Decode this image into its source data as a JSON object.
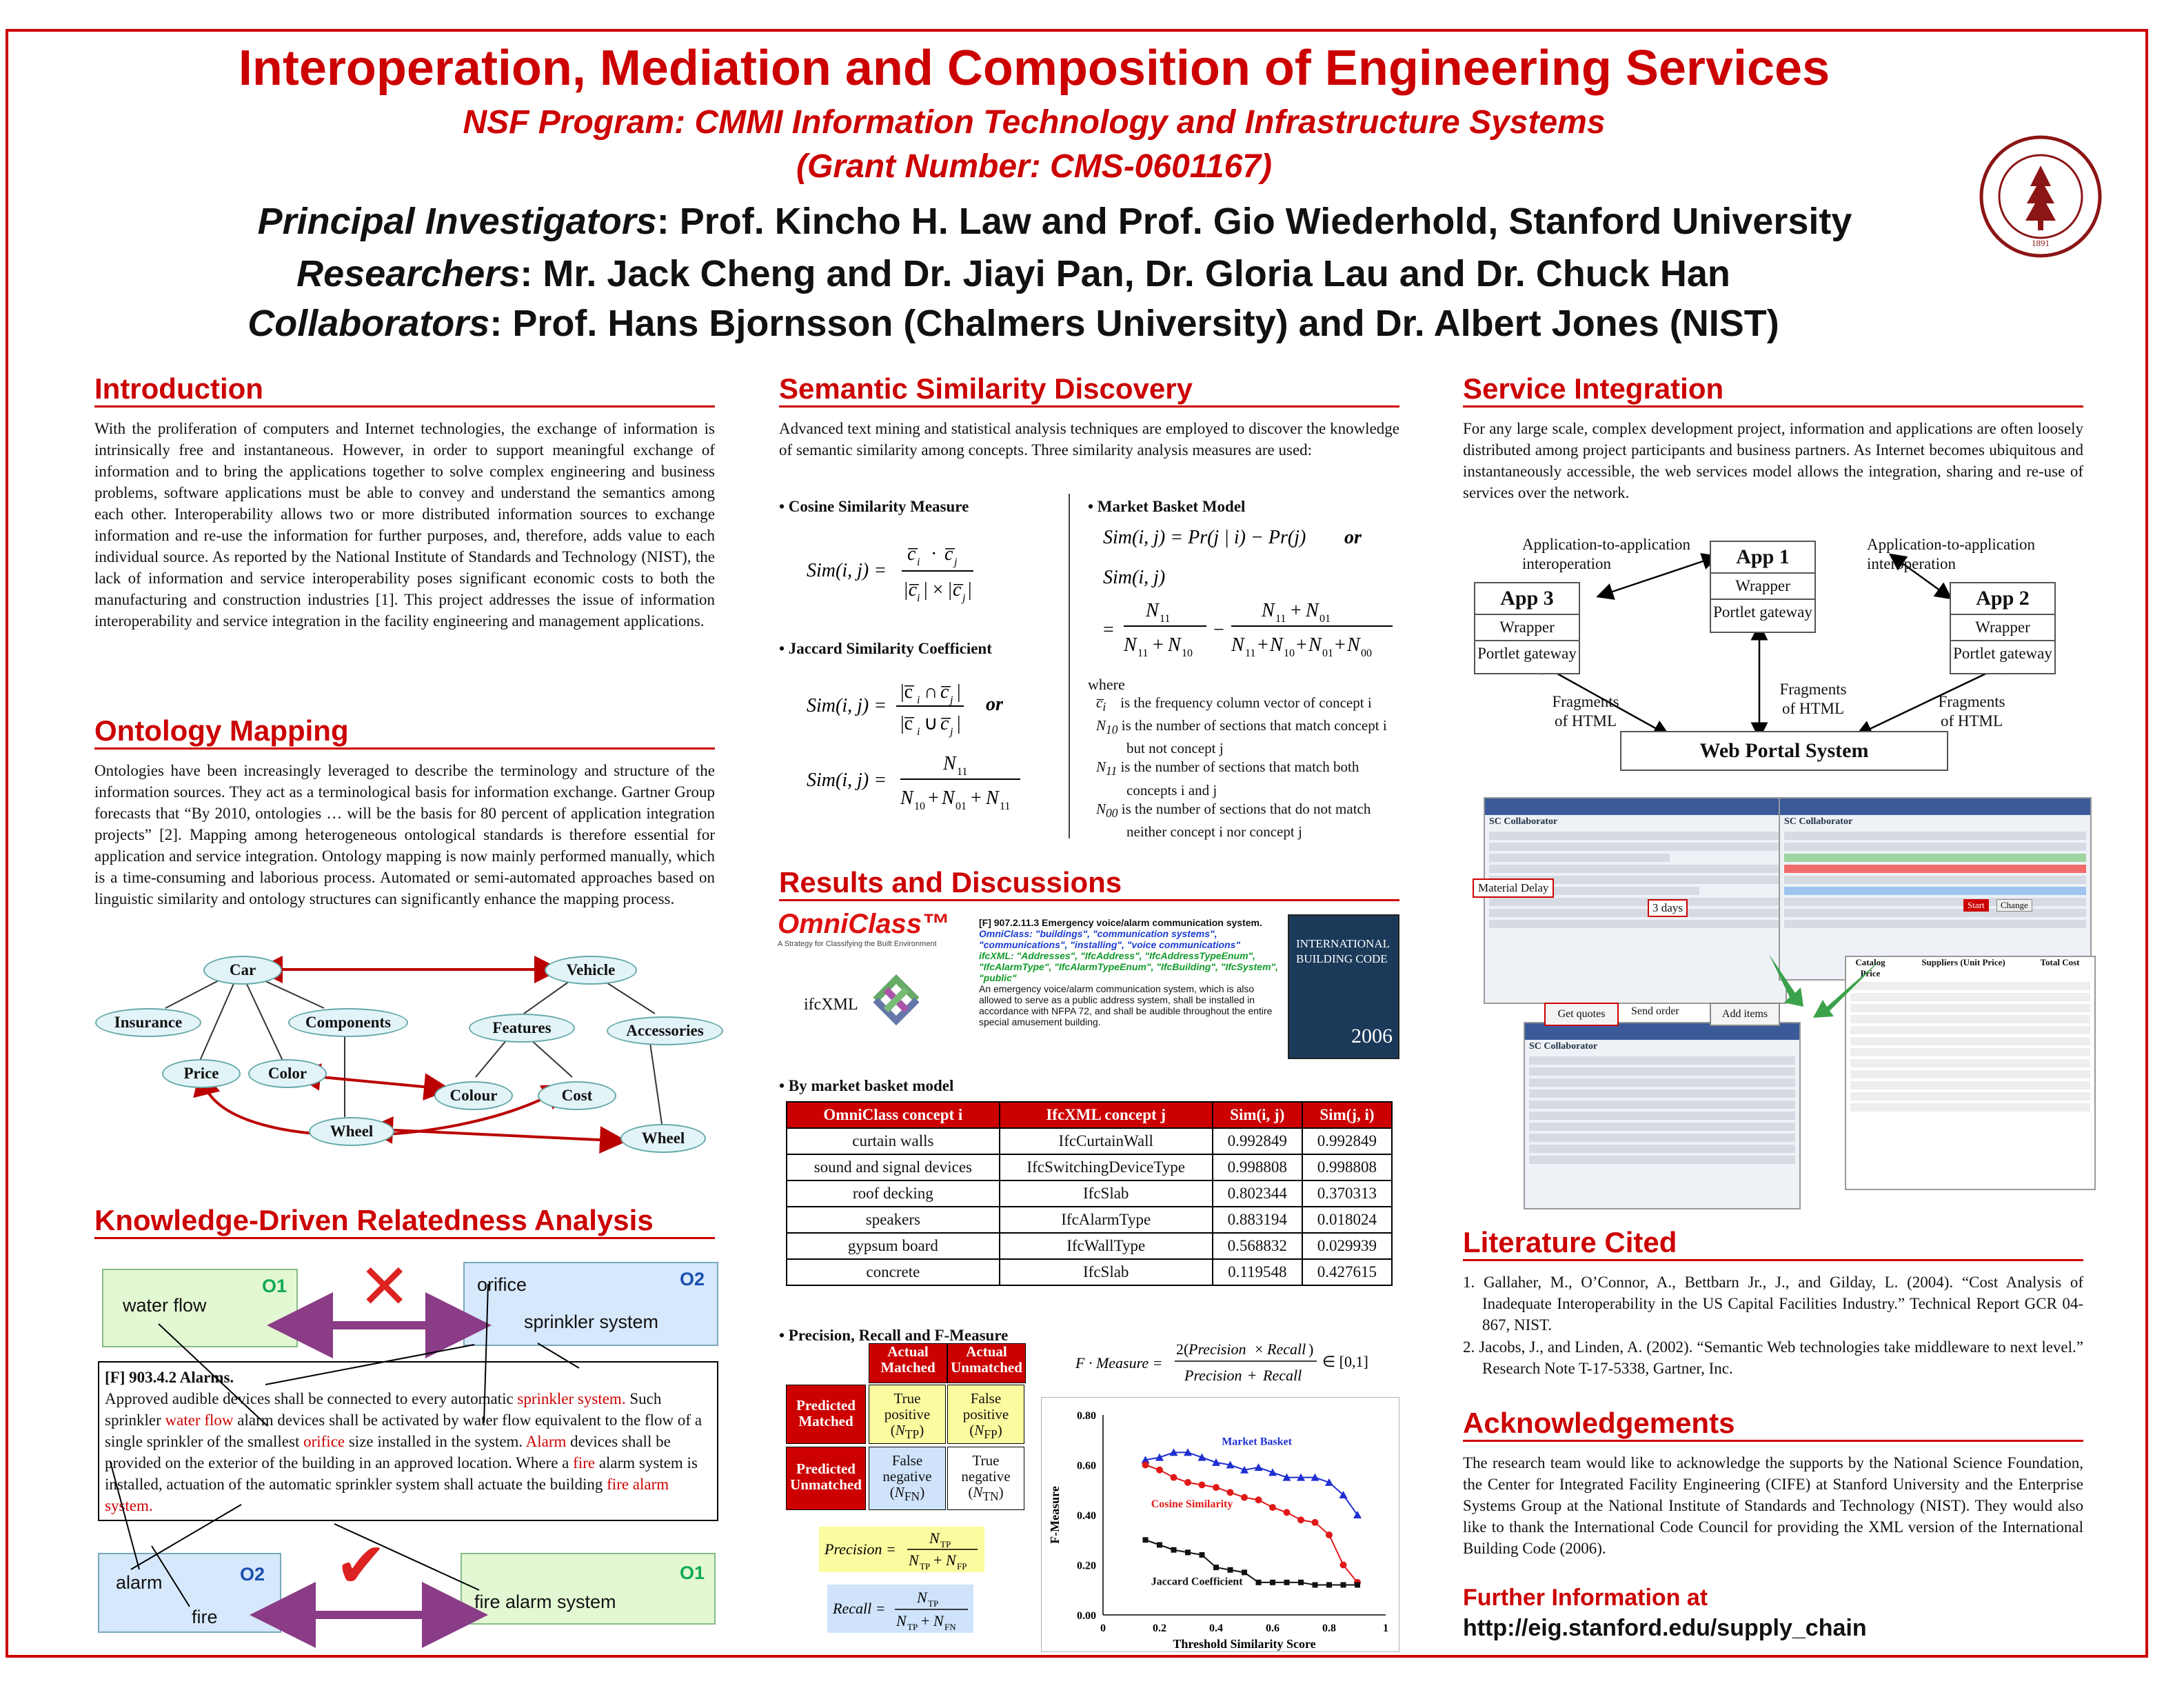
{
  "header": {
    "title": "Interoperation, Mediation and Composition of Engineering Services",
    "program": "NSF Program: CMMI Information Technology and Infrastructure Systems",
    "grant": "(Grant Number: CMS-0601167)",
    "pi_label": "Principal Investigators",
    "pi_text": ": Prof. Kincho H. Law and Prof. Gio Wiederhold, Stanford University",
    "res_label": "Researchers",
    "res_text": ": Mr. Jack Cheng and Dr. Jiayi Pan, Dr. Gloria Lau and Dr. Chuck Han",
    "col_label": "Collaborators",
    "col_text": ": Prof. Hans Bjornsson (Chalmers University) and Dr. Albert Jones (NIST)",
    "seal_text": "LELAND STANFORD JUNIOR UNIVERSITY",
    "seal_year": "1891"
  },
  "introduction": {
    "heading": "Introduction",
    "body": "With the proliferation of computers and Internet technologies, the exchange of information is intrinsically free and instantaneous.  However, in order to support meaningful exchange of information and to bring the applications together to solve complex engineering and business problems, software applications must be able to convey and understand the semantics among each other.  Interoperability allows two or more distributed information sources to exchange information and re-use the information for further purposes, and, therefore, adds value to each individual source.  As reported by the National Institute of Standards and Technology (NIST), the lack of information and service interoperability poses significant economic costs to both the manufacturing and construction industries [1].  This project addresses the issue of information interoperability and service integration in the facility engineering and management applications."
  },
  "ontology": {
    "heading": "Ontology Mapping",
    "body": "Ontologies have been increasingly leveraged to describe the terminology and structure of the information sources.  They act as a terminological basis for information exchange.  Gartner Group forecasts that “By 2010, ontologies … will be the basis for 80 percent of application integration projects” [2].  Mapping among heterogeneous ontological standards is therefore essential for application and service integration.  Ontology mapping is now mainly performed manually, which is a time-consuming and laborious process.  Automated or semi-automated approaches based on linguistic similarity and ontology structures can significantly enhance the mapping process.",
    "nodes": {
      "car": "Car",
      "vehicle": "Vehicle",
      "insurance": "Insurance",
      "components": "Components",
      "features": "Features",
      "accessories": "Accessories",
      "price": "Price",
      "color": "Color",
      "colour": "Colour",
      "cost": "Cost",
      "wheel1": "Wheel",
      "wheel2": "Wheel"
    }
  },
  "knowledge": {
    "heading": "Knowledge-Driven Relatedness Analysis",
    "o1": "O1",
    "o2": "O2",
    "water_flow": "water flow",
    "orifice": "orifice",
    "sprinkler": "sprinkler system",
    "alarm": "alarm",
    "fire": "fire",
    "fire_alarm": "fire alarm system",
    "cross": "✕",
    "check": "✔",
    "clause_title": "[F] 903.4.2 Alarms.",
    "clause": [
      {
        "t": "Approved audible devices shall be connected to every automatic "
      },
      {
        "t": "sprinkler system.",
        "r": 1
      },
      {
        "t": " Such sprinkler "
      },
      {
        "t": "water flow",
        "r": 1
      },
      {
        "t": " alarm devices shall be activated by water flow equivalent to the flow of a single sprinkler of the smallest "
      },
      {
        "t": "orifice",
        "r": 1
      },
      {
        "t": " size installed in the system. "
      },
      {
        "t": "Alarm",
        "r": 1
      },
      {
        "t": " devices shall be provided on the exterior of the building in an approved location. Where a "
      },
      {
        "t": "fire",
        "r": 1
      },
      {
        "t": " alarm system is installed, actuation of the automatic sprinkler system shall actuate the building "
      },
      {
        "t": "fire alarm system.",
        "r": 1
      }
    ]
  },
  "semantic": {
    "heading": "Semantic Similarity Discovery",
    "body": "Advanced text mining and statistical analysis techniques are employed to discover the knowledge of semantic similarity among concepts.   Three similarity analysis measures are used:",
    "cosine": "• Cosine Similarity Measure",
    "jaccard": "• Jaccard Similarity Coefficient",
    "market": "• Market Basket Model",
    "or": "or",
    "where": "where",
    "defs": [
      "is the frequency column vector of concept i",
      "is the number of sections that match concept i but not concept j",
      "is the number of sections that match both concepts i and j",
      "is the number of sections that do not match neither concept i nor concept j"
    ]
  },
  "results": {
    "heading": "Results and Discussions",
    "omniclass_logo": "OmniClass™",
    "omniclass_tag": "A Strategy for Classifying the Built Environment",
    "ifcxml": "ifcXML",
    "clause_head": "[F] 907.2.11.3 Emergency voice/alarm communication system.",
    "clause_blue": "OmniClass: \"buildings\", \"communication systems\", \"communications\", \"installing\", \"voice communications\"",
    "clause_green": "ifcXML: \"Addresses\", \"IfcAddress\", \"IfcAddressTypeEnum\", \"IfcAlarmType\", \"IfcAlarmTypeEnum\", \"IfcBuilding\", \"IfcSystem\", \"public\"",
    "clause_body": "An emergency voice/alarm communication system, which is also allowed to serve as a public address system, shall be installed in accordance with NFPA 72, and shall be audible throughout the entire special amusement building.",
    "ibc_title": "INTERNATIONAL BUILDING CODE",
    "ibc_year": "2006",
    "table_caption": "•  By market basket model",
    "table_headers": [
      "OmniClass concept i",
      "IfcXML concept j",
      "Sim(i, j)",
      "Sim(j, i)"
    ],
    "table_rows": [
      [
        "curtain walls",
        "IfcCurtainWall",
        "0.992849",
        "0.992849"
      ],
      [
        "sound and signal devices",
        "IfcSwitchingDeviceType",
        "0.998808",
        "0.998808"
      ],
      [
        "roof decking",
        "IfcSlab",
        "0.802344",
        "0.370313"
      ],
      [
        "speakers",
        "IfcAlarmType",
        "0.883194",
        "0.018024"
      ],
      [
        "gypsum board",
        "IfcWallType",
        "0.568832",
        "0.029939"
      ],
      [
        "concrete",
        "IfcSlab",
        "0.119548",
        "0.427615"
      ]
    ],
    "prf_caption": "•  Precision, Recall and F-Measure",
    "conf": {
      "am": "Actual Matched",
      "au": "Actual Unmatched",
      "pm": "Predicted Matched",
      "pu": "Predicted Unmatched",
      "tp": "True positive",
      "fp": "False positive",
      "fn": "False negative",
      "tn": "True negative"
    }
  },
  "service": {
    "heading": "Service Integration",
    "body": "For any large scale, complex development project, information and applications are often loosely distributed among project participants and business partners.  As Internet becomes ubiquitous and instantaneously accessible, the web services model allows the integration, sharing and re-use of services over the network.",
    "a2a_left": "Application-to-application interoperation",
    "a2a_right": "Application-to-application interoperation",
    "app1": "App 1",
    "app2": "App 2",
    "app3": "App 3",
    "wrapper": "Wrapper",
    "portlet": "Portlet gateway",
    "frag": "Fragments of HTML",
    "portal": "Web Portal System",
    "collab": "SC Collaborator",
    "material_delay": "Material Delay",
    "days": "3 days",
    "get_quotes": "Get quotes",
    "send_order": "Send order",
    "add_items": "Add items",
    "start": "Start",
    "change": "Change",
    "cat_price": "Catalog Price",
    "suppliers": "Suppliers (Unit Price)",
    "total_cost": "Total Cost"
  },
  "literature": {
    "heading": "Literature Cited",
    "refs": [
      "1. Gallaher, M., O’Connor, A., Bettbarn Jr., J., and Gilday, L. (2004). “Cost Analysis of Inadequate Interoperability in the US Capital Facilities Industry.” Technical Report GCR 04-867, NIST.",
      "2. Jacobs, J., and Linden, A. (2002). “Semantic Web technologies take middleware to next level.” Research Note T-17-5338, Gartner, Inc."
    ]
  },
  "ack": {
    "heading": "Acknowledgements",
    "body": "The research team would like to acknowledge the supports by the National Science Foundation, the Center for Integrated Facility Engineering (CIFE) at Stanford University and the Enterprise Systems Group at the National Institute of Standards and Technology (NIST).  They would also like to thank the International Code Council for providing the XML version of the International Building Code (2006).",
    "further": "Further Information at",
    "url": "http://eig.stanford.edu/supply_chain"
  },
  "chart_data": {
    "type": "line",
    "xlabel": "Threshold Similarity Score",
    "ylabel": "F-Measure",
    "xlim": [
      0,
      1
    ],
    "ylim": [
      0,
      0.8
    ],
    "xticks": [
      "0",
      "0.2",
      "0.4",
      "0.6",
      "0.8",
      "1"
    ],
    "yticks": [
      "0.00",
      "0.20",
      "0.40",
      "0.60",
      "0.80"
    ],
    "colors": {
      "market": "#1f2fd0",
      "cosine": "#e01818",
      "jaccard": "#111111"
    },
    "series": [
      {
        "name": "Market Basket",
        "key": "market",
        "x": [
          0.15,
          0.2,
          0.25,
          0.3,
          0.35,
          0.4,
          0.45,
          0.5,
          0.55,
          0.6,
          0.65,
          0.7,
          0.75,
          0.8,
          0.85,
          0.9
        ],
        "y": [
          0.62,
          0.63,
          0.65,
          0.65,
          0.63,
          0.61,
          0.6,
          0.58,
          0.59,
          0.57,
          0.55,
          0.55,
          0.55,
          0.53,
          0.48,
          0.4
        ]
      },
      {
        "name": "Cosine Similarity",
        "key": "cosine",
        "x": [
          0.15,
          0.2,
          0.25,
          0.3,
          0.35,
          0.4,
          0.45,
          0.5,
          0.55,
          0.6,
          0.65,
          0.7,
          0.75,
          0.8,
          0.85,
          0.9
        ],
        "y": [
          0.6,
          0.58,
          0.55,
          0.53,
          0.52,
          0.51,
          0.49,
          0.47,
          0.46,
          0.43,
          0.41,
          0.38,
          0.37,
          0.32,
          0.2,
          0.13
        ]
      },
      {
        "name": "Jaccard Coefficient",
        "key": "jaccard",
        "x": [
          0.15,
          0.2,
          0.25,
          0.3,
          0.35,
          0.4,
          0.45,
          0.5,
          0.55,
          0.6,
          0.65,
          0.7,
          0.75,
          0.8,
          0.85,
          0.9
        ],
        "y": [
          0.3,
          0.28,
          0.26,
          0.25,
          0.24,
          0.19,
          0.18,
          0.17,
          0.13,
          0.13,
          0.13,
          0.13,
          0.12,
          0.12,
          0.12,
          0.12
        ]
      }
    ]
  }
}
